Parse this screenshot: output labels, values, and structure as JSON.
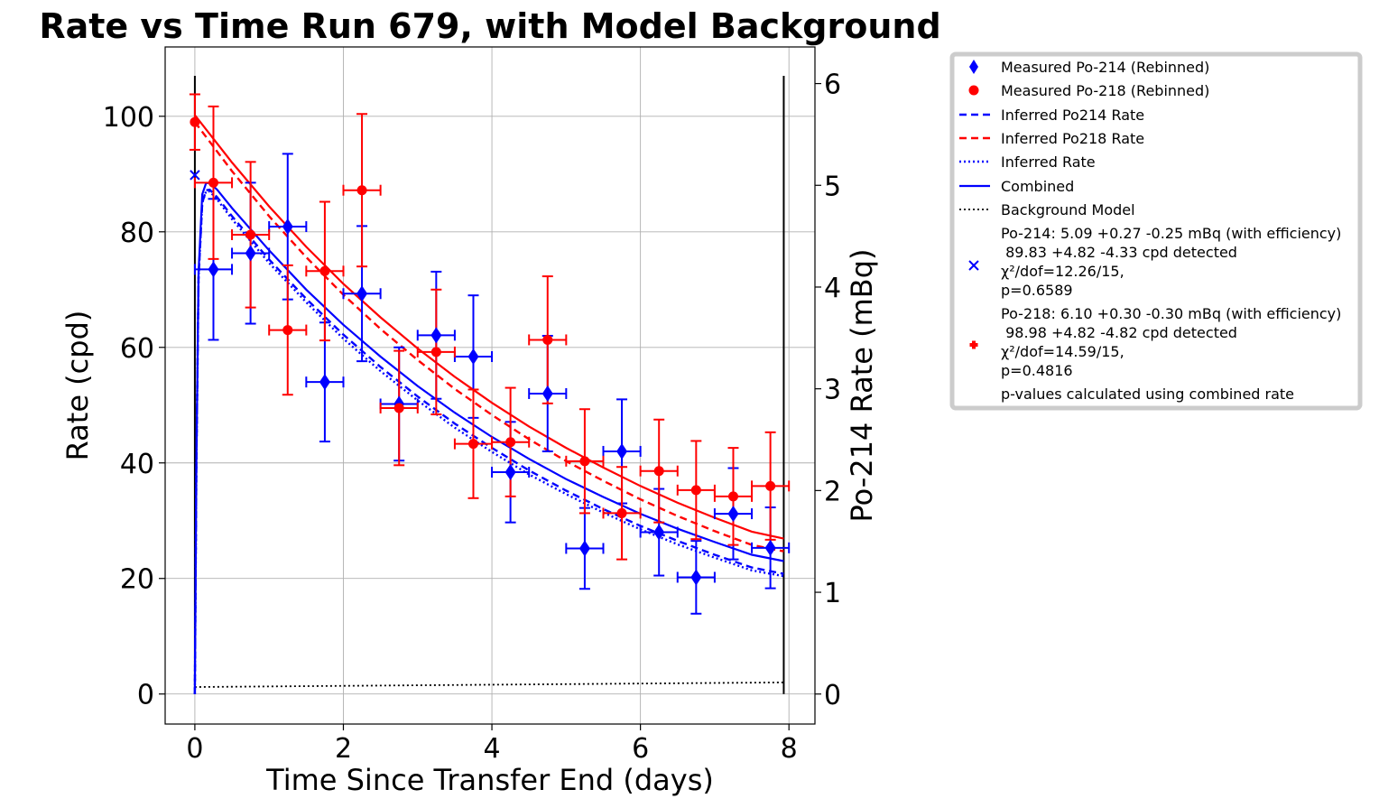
{
  "chart_data": {
    "type": "scatter",
    "title": "Rate vs Time Run 679, with Model Background",
    "xlabel": "Time Since Transfer End (days)",
    "ylabel": "Rate (cpd)",
    "y2label": "Po-214 Rate (mBq)",
    "xlim": [
      -0.4,
      8.35
    ],
    "ylim": [
      -5.2,
      112
    ],
    "y2lim": [
      -0.295,
      6.36
    ],
    "xticks": [
      0,
      2,
      4,
      6,
      8
    ],
    "yticks": [
      0,
      20,
      40,
      60,
      80,
      100
    ],
    "y2ticks": [
      0,
      1,
      2,
      3,
      4,
      5,
      6
    ],
    "grid": true,
    "legend_position": "outside-right",
    "vlines_x": [
      0,
      7.93
    ],
    "colors": {
      "po214": "#0000ff",
      "po218": "#ff0000",
      "background": "#000000",
      "legend_frame": "#cccccc"
    },
    "po214_measured": {
      "x": [
        0.25,
        0.75,
        1.25,
        1.75,
        2.25,
        2.75,
        3.25,
        3.75,
        4.25,
        4.75,
        5.25,
        5.75,
        6.25,
        6.75,
        7.25,
        7.75
      ],
      "y": [
        73.5,
        76.3,
        80.9,
        54.0,
        69.3,
        50.2,
        62.1,
        58.4,
        38.4,
        52.0,
        25.2,
        42.0,
        28.0,
        20.2,
        31.2,
        25.3
      ],
      "yerr": [
        12.2,
        12.2,
        12.6,
        10.3,
        11.7,
        9.8,
        11.0,
        10.6,
        8.7,
        10.0,
        7.0,
        9.0,
        7.5,
        6.3,
        7.9,
        7.0
      ],
      "xerr": 0.25
    },
    "po218_measured": {
      "x": [
        0.0,
        0.25,
        0.75,
        1.25,
        1.75,
        2.25,
        2.75,
        3.25,
        3.75,
        4.25,
        4.75,
        5.25,
        5.75,
        6.25,
        6.75,
        7.25,
        7.75
      ],
      "y": [
        99.0,
        88.5,
        79.5,
        63.0,
        73.2,
        87.2,
        49.5,
        59.2,
        43.3,
        43.6,
        61.3,
        40.3,
        31.3,
        38.6,
        35.3,
        34.2,
        36.0
      ],
      "yerr": [
        4.8,
        13.2,
        12.6,
        11.2,
        12.0,
        13.2,
        9.9,
        10.8,
        9.4,
        9.4,
        11.0,
        9.0,
        8.0,
        8.9,
        8.5,
        8.4,
        9.3
      ],
      "xerr": [
        0.0,
        0.25,
        0.25,
        0.25,
        0.25,
        0.25,
        0.25,
        0.25,
        0.25,
        0.25,
        0.25,
        0.25,
        0.25,
        0.25,
        0.25,
        0.25,
        0.25
      ]
    },
    "po214_fit_point": {
      "x": 0,
      "y": 89.83
    },
    "po218_fit_point": {
      "x": 0,
      "y": 98.98
    },
    "models": {
      "inferred_po214": {
        "x": [
          0,
          0.02,
          0.05,
          0.1,
          0.15,
          0.2,
          0.3,
          0.5,
          1,
          1.5,
          2,
          2.5,
          3,
          3.5,
          4,
          4.5,
          5,
          5.5,
          6,
          6.5,
          7,
          7.5,
          7.93
        ],
        "y": [
          0,
          40,
          72,
          85,
          87.2,
          87.3,
          86,
          82.7,
          75.2,
          68.4,
          62.2,
          56.6,
          51.5,
          46.8,
          42.6,
          38.7,
          35.2,
          32.0,
          29.1,
          26.5,
          24.1,
          21.9,
          20.8
        ]
      },
      "inferred_po218": {
        "x": [
          0,
          0.5,
          1,
          1.5,
          2,
          2.5,
          3,
          3.5,
          4,
          4.5,
          5,
          5.5,
          6,
          6.5,
          7,
          7.5,
          7.93
        ],
        "y": [
          99,
          90.5,
          82.7,
          75.6,
          69.1,
          63.2,
          57.8,
          52.8,
          48.3,
          44.1,
          40.3,
          36.9,
          33.7,
          30.8,
          28.2,
          25.8,
          24.7
        ]
      },
      "inferred_rate": {
        "x": [
          0,
          0.02,
          0.05,
          0.1,
          0.15,
          0.2,
          0.3,
          0.5,
          1,
          1.5,
          2,
          2.5,
          3,
          3.5,
          4,
          4.5,
          5,
          5.5,
          6,
          6.5,
          7,
          7.5,
          7.93
        ],
        "y": [
          0,
          40,
          72,
          85,
          87.0,
          87.0,
          85.6,
          82.2,
          74.6,
          67.8,
          61.5,
          55.9,
          50.8,
          46.1,
          41.9,
          38.0,
          34.6,
          31.4,
          28.5,
          25.9,
          23.6,
          21.4,
          20.4
        ]
      },
      "combined_po214": {
        "x": [
          0,
          0.02,
          0.05,
          0.1,
          0.15,
          0.2,
          0.3,
          0.5,
          1,
          1.5,
          2,
          2.5,
          3,
          3.5,
          4,
          4.5,
          5,
          5.5,
          6,
          6.5,
          7,
          7.5,
          7.93
        ],
        "y": [
          0,
          40,
          73,
          86.5,
          88.4,
          88.5,
          87.3,
          84.1,
          76.8,
          70.0,
          63.9,
          58.4,
          53.3,
          48.7,
          44.5,
          40.7,
          37.2,
          34.1,
          31.2,
          28.6,
          26.3,
          24.1,
          23.0
        ]
      },
      "combined_po218": {
        "x": [
          0,
          0.5,
          1,
          1.5,
          2,
          2.5,
          3,
          3.5,
          4,
          4.5,
          5,
          5.5,
          6,
          6.5,
          7,
          7.5,
          7.93
        ],
        "y": [
          100.2,
          92.0,
          84.4,
          77.4,
          71.0,
          65.2,
          59.8,
          54.9,
          50.4,
          46.3,
          42.6,
          39.2,
          36.0,
          33.1,
          30.5,
          28.1,
          26.9
        ]
      },
      "background": {
        "x": [
          0,
          7.93
        ],
        "y": [
          1.2,
          2.0
        ]
      }
    },
    "legend": {
      "entries": [
        "Measured Po-214 (Rebinned)",
        "Measured Po-218 (Rebinned)",
        "Inferred Po214 Rate",
        "Inferred Po218 Rate",
        "Inferred Rate",
        "Combined",
        "Background Model"
      ],
      "po214_summary": [
        "Po-214: 5.09 +0.27 -0.25 mBq (with efficiency)",
        " 89.83 +4.82 -4.33 cpd detected",
        "χ²/dof=12.26/15,",
        "p=0.6589"
      ],
      "po218_summary": [
        "Po-218: 6.10 +0.30 -0.30 mBq (with efficiency)",
        " 98.98 +4.82 -4.82 cpd detected",
        "χ²/dof=14.59/15,",
        "p=0.4816"
      ],
      "footnote": "p-values calculated using combined rate"
    }
  }
}
